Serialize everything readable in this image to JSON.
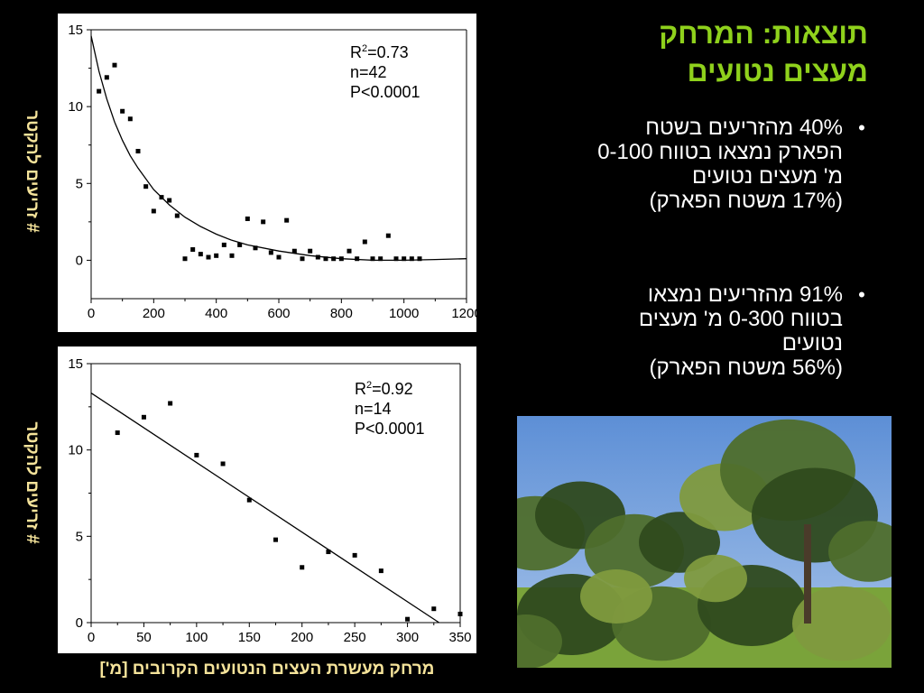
{
  "title": {
    "line1": "תוצאות: המרחק",
    "line2": "מעצים נטועים"
  },
  "bullets": [
    {
      "lines": [
        "40% מהזריעים בשטח",
        "הפארק נמצאו בטווח 0-100",
        "מ' מעצים נטועים",
        "(17% משטח הפארק)"
      ]
    },
    {
      "lines": [
        "91% מהזריעים נמצאו",
        "בטווח 0-300 מ' מעצים",
        "נטועים",
        "(56% משטח הפארק)"
      ]
    }
  ],
  "bullet_symbol": "•",
  "axis_labels": {
    "y_top": "# זריעים להקטר",
    "y_bottom": "# זריעים להקטר",
    "x_shared": "מרחק מעשרת העצים הנטועים הקרובים [מ']"
  },
  "stats": {
    "top": {
      "r2_prefix": "R",
      "r2_sup": "2",
      "r2_value": "=0.73",
      "n": "n=42",
      "p": "P<0.0001"
    },
    "bottom": {
      "r2_prefix": "R",
      "r2_sup": "2",
      "r2_value": "=0.92",
      "n": "n=14",
      "p": "P<0.0001"
    }
  },
  "chart_data": [
    {
      "type": "scatter",
      "title": "",
      "xlabel": "מרחק מעשרת העצים הנטועים הקרובים [מ']",
      "ylabel": "# זריעים להקטר",
      "xlim": [
        0,
        1200
      ],
      "ylim": [
        -2.5,
        15
      ],
      "xticks": [
        0,
        200,
        400,
        600,
        800,
        1000,
        1200
      ],
      "yticks": [
        0,
        5,
        10,
        15
      ],
      "grid": false,
      "points": [
        {
          "x": 25,
          "y": 11
        },
        {
          "x": 50,
          "y": 11.9
        },
        {
          "x": 75,
          "y": 12.7
        },
        {
          "x": 100,
          "y": 9.7
        },
        {
          "x": 125,
          "y": 9.2
        },
        {
          "x": 150,
          "y": 7.1
        },
        {
          "x": 175,
          "y": 4.8
        },
        {
          "x": 200,
          "y": 3.2
        },
        {
          "x": 225,
          "y": 4.1
        },
        {
          "x": 250,
          "y": 3.9
        },
        {
          "x": 275,
          "y": 2.9
        },
        {
          "x": 300,
          "y": 0.1
        },
        {
          "x": 325,
          "y": 0.7
        },
        {
          "x": 350,
          "y": 0.4
        },
        {
          "x": 375,
          "y": 0.2
        },
        {
          "x": 400,
          "y": 0.3
        },
        {
          "x": 425,
          "y": 1
        },
        {
          "x": 450,
          "y": 0.3
        },
        {
          "x": 475,
          "y": 1
        },
        {
          "x": 500,
          "y": 2.7
        },
        {
          "x": 525,
          "y": 0.8
        },
        {
          "x": 550,
          "y": 2.5
        },
        {
          "x": 575,
          "y": 0.5
        },
        {
          "x": 600,
          "y": 0.2
        },
        {
          "x": 625,
          "y": 2.6
        },
        {
          "x": 650,
          "y": 0.6
        },
        {
          "x": 675,
          "y": 0.1
        },
        {
          "x": 700,
          "y": 0.6
        },
        {
          "x": 725,
          "y": 0.2
        },
        {
          "x": 750,
          "y": 0.1
        },
        {
          "x": 775,
          "y": 0.1
        },
        {
          "x": 800,
          "y": 0.1
        },
        {
          "x": 825,
          "y": 0.6
        },
        {
          "x": 850,
          "y": 0.1
        },
        {
          "x": 875,
          "y": 1.2
        },
        {
          "x": 900,
          "y": 0.1
        },
        {
          "x": 925,
          "y": 0.1
        },
        {
          "x": 950,
          "y": 1.6
        },
        {
          "x": 975,
          "y": 0.1
        },
        {
          "x": 1000,
          "y": 0.1
        },
        {
          "x": 1025,
          "y": 0.1
        },
        {
          "x": 1050,
          "y": 0.1
        }
      ],
      "fit_curve": [
        {
          "x": 0,
          "y": 14.6
        },
        {
          "x": 25,
          "y": 12.3
        },
        {
          "x": 50,
          "y": 10.5
        },
        {
          "x": 75,
          "y": 9
        },
        {
          "x": 100,
          "y": 7.8
        },
        {
          "x": 125,
          "y": 6.8
        },
        {
          "x": 150,
          "y": 6
        },
        {
          "x": 200,
          "y": 4.6
        },
        {
          "x": 250,
          "y": 3.6
        },
        {
          "x": 300,
          "y": 2.8
        },
        {
          "x": 350,
          "y": 2.2
        },
        {
          "x": 400,
          "y": 1.7
        },
        {
          "x": 450,
          "y": 1.3
        },
        {
          "x": 500,
          "y": 1
        },
        {
          "x": 600,
          "y": 0.6
        },
        {
          "x": 700,
          "y": 0.3
        },
        {
          "x": 800,
          "y": 0.1
        },
        {
          "x": 900,
          "y": 0
        },
        {
          "x": 1000,
          "y": 0
        },
        {
          "x": 1100,
          "y": 0.05
        },
        {
          "x": 1200,
          "y": 0.1
        }
      ],
      "annotations": [
        "R2=0.73",
        "n=42",
        "P<0.0001"
      ]
    },
    {
      "type": "scatter",
      "title": "",
      "xlabel": "מרחק מעשרת העצים הנטועים הקרובים [מ']",
      "ylabel": "# זריעים להקטר",
      "xlim": [
        0,
        350
      ],
      "ylim": [
        0,
        15
      ],
      "xticks": [
        0,
        50,
        100,
        150,
        200,
        250,
        300,
        350
      ],
      "yticks": [
        0,
        5,
        10,
        15
      ],
      "grid": false,
      "points": [
        {
          "x": 25,
          "y": 11
        },
        {
          "x": 50,
          "y": 11.9
        },
        {
          "x": 75,
          "y": 12.7
        },
        {
          "x": 100,
          "y": 9.7
        },
        {
          "x": 125,
          "y": 9.2
        },
        {
          "x": 150,
          "y": 7.1
        },
        {
          "x": 175,
          "y": 4.8
        },
        {
          "x": 200,
          "y": 3.2
        },
        {
          "x": 225,
          "y": 4.1
        },
        {
          "x": 250,
          "y": 3.9
        },
        {
          "x": 275,
          "y": 3
        },
        {
          "x": 300,
          "y": 0.2
        },
        {
          "x": 325,
          "y": 0.8
        },
        {
          "x": 350,
          "y": 0.5
        }
      ],
      "fit_line": [
        {
          "x": 0,
          "y": 13.3
        },
        {
          "x": 330,
          "y": 0
        }
      ],
      "annotations": [
        "R2=0.92",
        "n=14",
        "P<0.0001"
      ]
    }
  ],
  "photo": {
    "sky_color": "#5d8fd6",
    "sky_light_color": "#a9c5ea",
    "foliage_dark": "#2f4a1e",
    "foliage_mid": "#4f6e2c",
    "foliage_light": "#7f9a3e",
    "grass_color": "#7aa33a"
  }
}
